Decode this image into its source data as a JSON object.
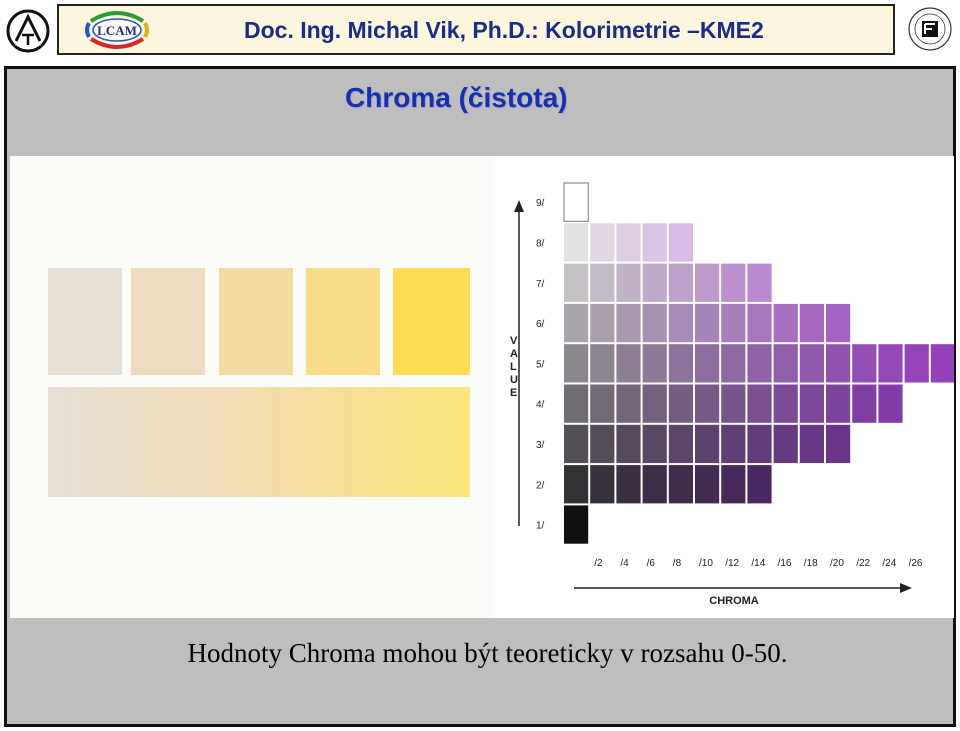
{
  "header": {
    "title": "Doc. Ing. Michal Vik, Ph.D.: Kolorimetrie –KME2",
    "lcam_logo_text": "LCAM",
    "left_logo_icon": "university-emblem-icon",
    "right_logo_icon": "faculty-seal-icon"
  },
  "slide": {
    "title": "Chroma (čistota)",
    "caption": "Hodnoty Chroma mohou být teoreticky v rozsahu 0-50."
  },
  "left_panel": {
    "swatch_colors": [
      "#e6dfd6",
      "#eedcc0",
      "#f4dba3",
      "#fadd88",
      "#fedc54"
    ]
  },
  "munsell_chart": {
    "value_axis_title": "VALUE",
    "chroma_axis_title": "CHROMA",
    "value_labels": [
      "9/",
      "8/",
      "7/",
      "6/",
      "5/",
      "4/",
      "3/",
      "2/",
      "1/"
    ],
    "chroma_labels": [
      "/2",
      "/4",
      "/6",
      "/8",
      "/10",
      "/12",
      "/14",
      "/16",
      "/18",
      "/20",
      "/22",
      "/24",
      "/26"
    ],
    "rows": [
      {
        "value": 9,
        "neutral": "#ffffff",
        "max_chroma_steps": 0
      },
      {
        "value": 8,
        "neutral": "#e2e1e2",
        "max_chroma_steps": 4
      },
      {
        "value": 7,
        "neutral": "#c4c2c5",
        "max_chroma_steps": 7
      },
      {
        "value": 6,
        "neutral": "#a9a6ab",
        "max_chroma_steps": 10
      },
      {
        "value": 5,
        "neutral": "#8c898e",
        "max_chroma_steps": 14
      },
      {
        "value": 4,
        "neutral": "#6f6d71",
        "max_chroma_steps": 12
      },
      {
        "value": 3,
        "neutral": "#525054",
        "max_chroma_steps": 10
      },
      {
        "value": 2,
        "neutral": "#333234",
        "max_chroma_steps": 7
      },
      {
        "value": 1,
        "neutral": "#101010",
        "max_chroma_steps": 0
      }
    ],
    "hue_target": "#c23cf0"
  }
}
